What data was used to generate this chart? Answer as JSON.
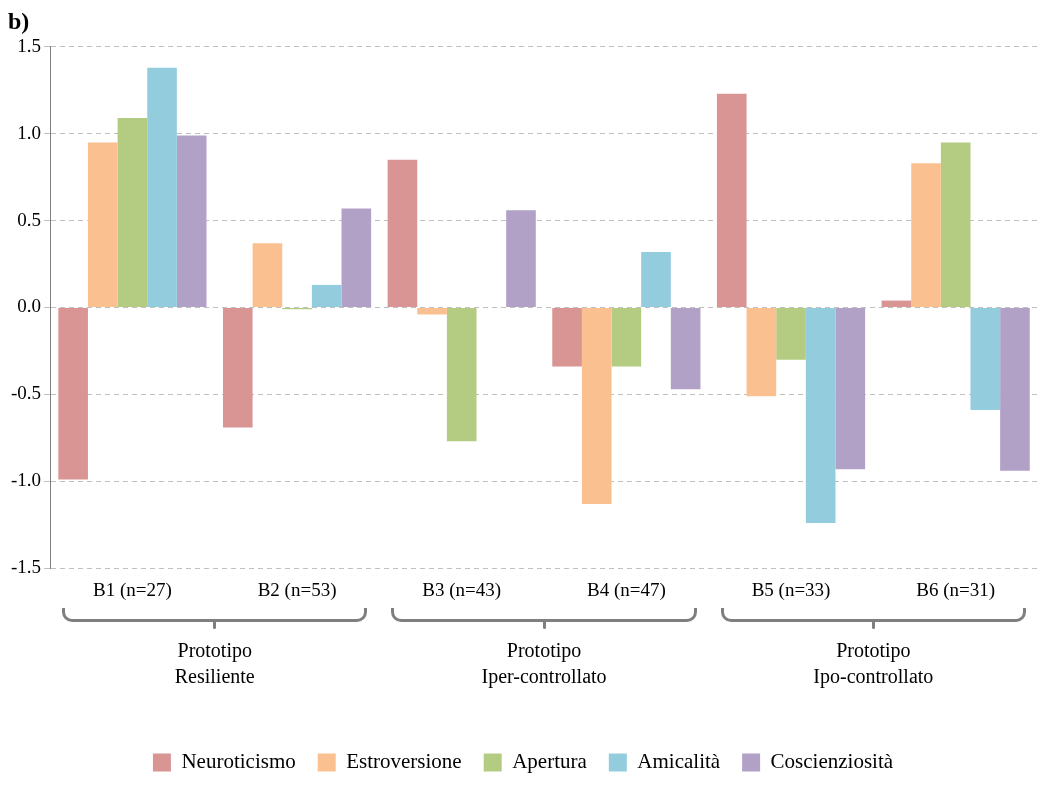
{
  "chart_data": {
    "type": "bar",
    "title": "b)",
    "categories": [
      "B1 (n=27)",
      "B2 (n=53)",
      "B3 (n=43)",
      "B4 (n=47)",
      "B5 (n=33)",
      "B6 (n=31)"
    ],
    "series": [
      {
        "name": "Neuroticismo",
        "color": "#d99594",
        "values": [
          -0.99,
          -0.69,
          0.85,
          -0.34,
          1.23,
          0.04
        ]
      },
      {
        "name": "Estroversione",
        "color": "#fac090",
        "values": [
          0.95,
          0.37,
          -0.04,
          -1.13,
          -0.51,
          0.83
        ]
      },
      {
        "name": "Apertura",
        "color": "#b3cc82",
        "values": [
          1.09,
          -0.01,
          -0.77,
          -0.34,
          -0.3,
          0.95
        ]
      },
      {
        "name": "Amicalità",
        "color": "#93cddd",
        "values": [
          1.38,
          0.13,
          0,
          0.32,
          -1.24,
          -0.59
        ]
      },
      {
        "name": "Coscienziosità",
        "color": "#b2a1c7",
        "values": [
          0.99,
          0.57,
          0.56,
          -0.47,
          -0.93,
          -0.94
        ]
      }
    ],
    "ylim": [
      -1.5,
      1.5
    ],
    "yticks": [
      {
        "value": -1.5,
        "label": "-1.5"
      },
      {
        "value": -1,
        "label": "-1.0"
      },
      {
        "value": -0.5,
        "label": "-0.5"
      },
      {
        "value": 0,
        "label": "0.0"
      },
      {
        "value": 0.5,
        "label": "0.5"
      },
      {
        "value": 1,
        "label": "1.0"
      },
      {
        "value": 1.5,
        "label": "1.5"
      }
    ],
    "grid": "y",
    "legend": "bottom",
    "annotations": [
      "Prototipo\nResiliente",
      "Prototipo\nIper-controllato",
      "Prototipo\nIpo-controllato"
    ]
  }
}
